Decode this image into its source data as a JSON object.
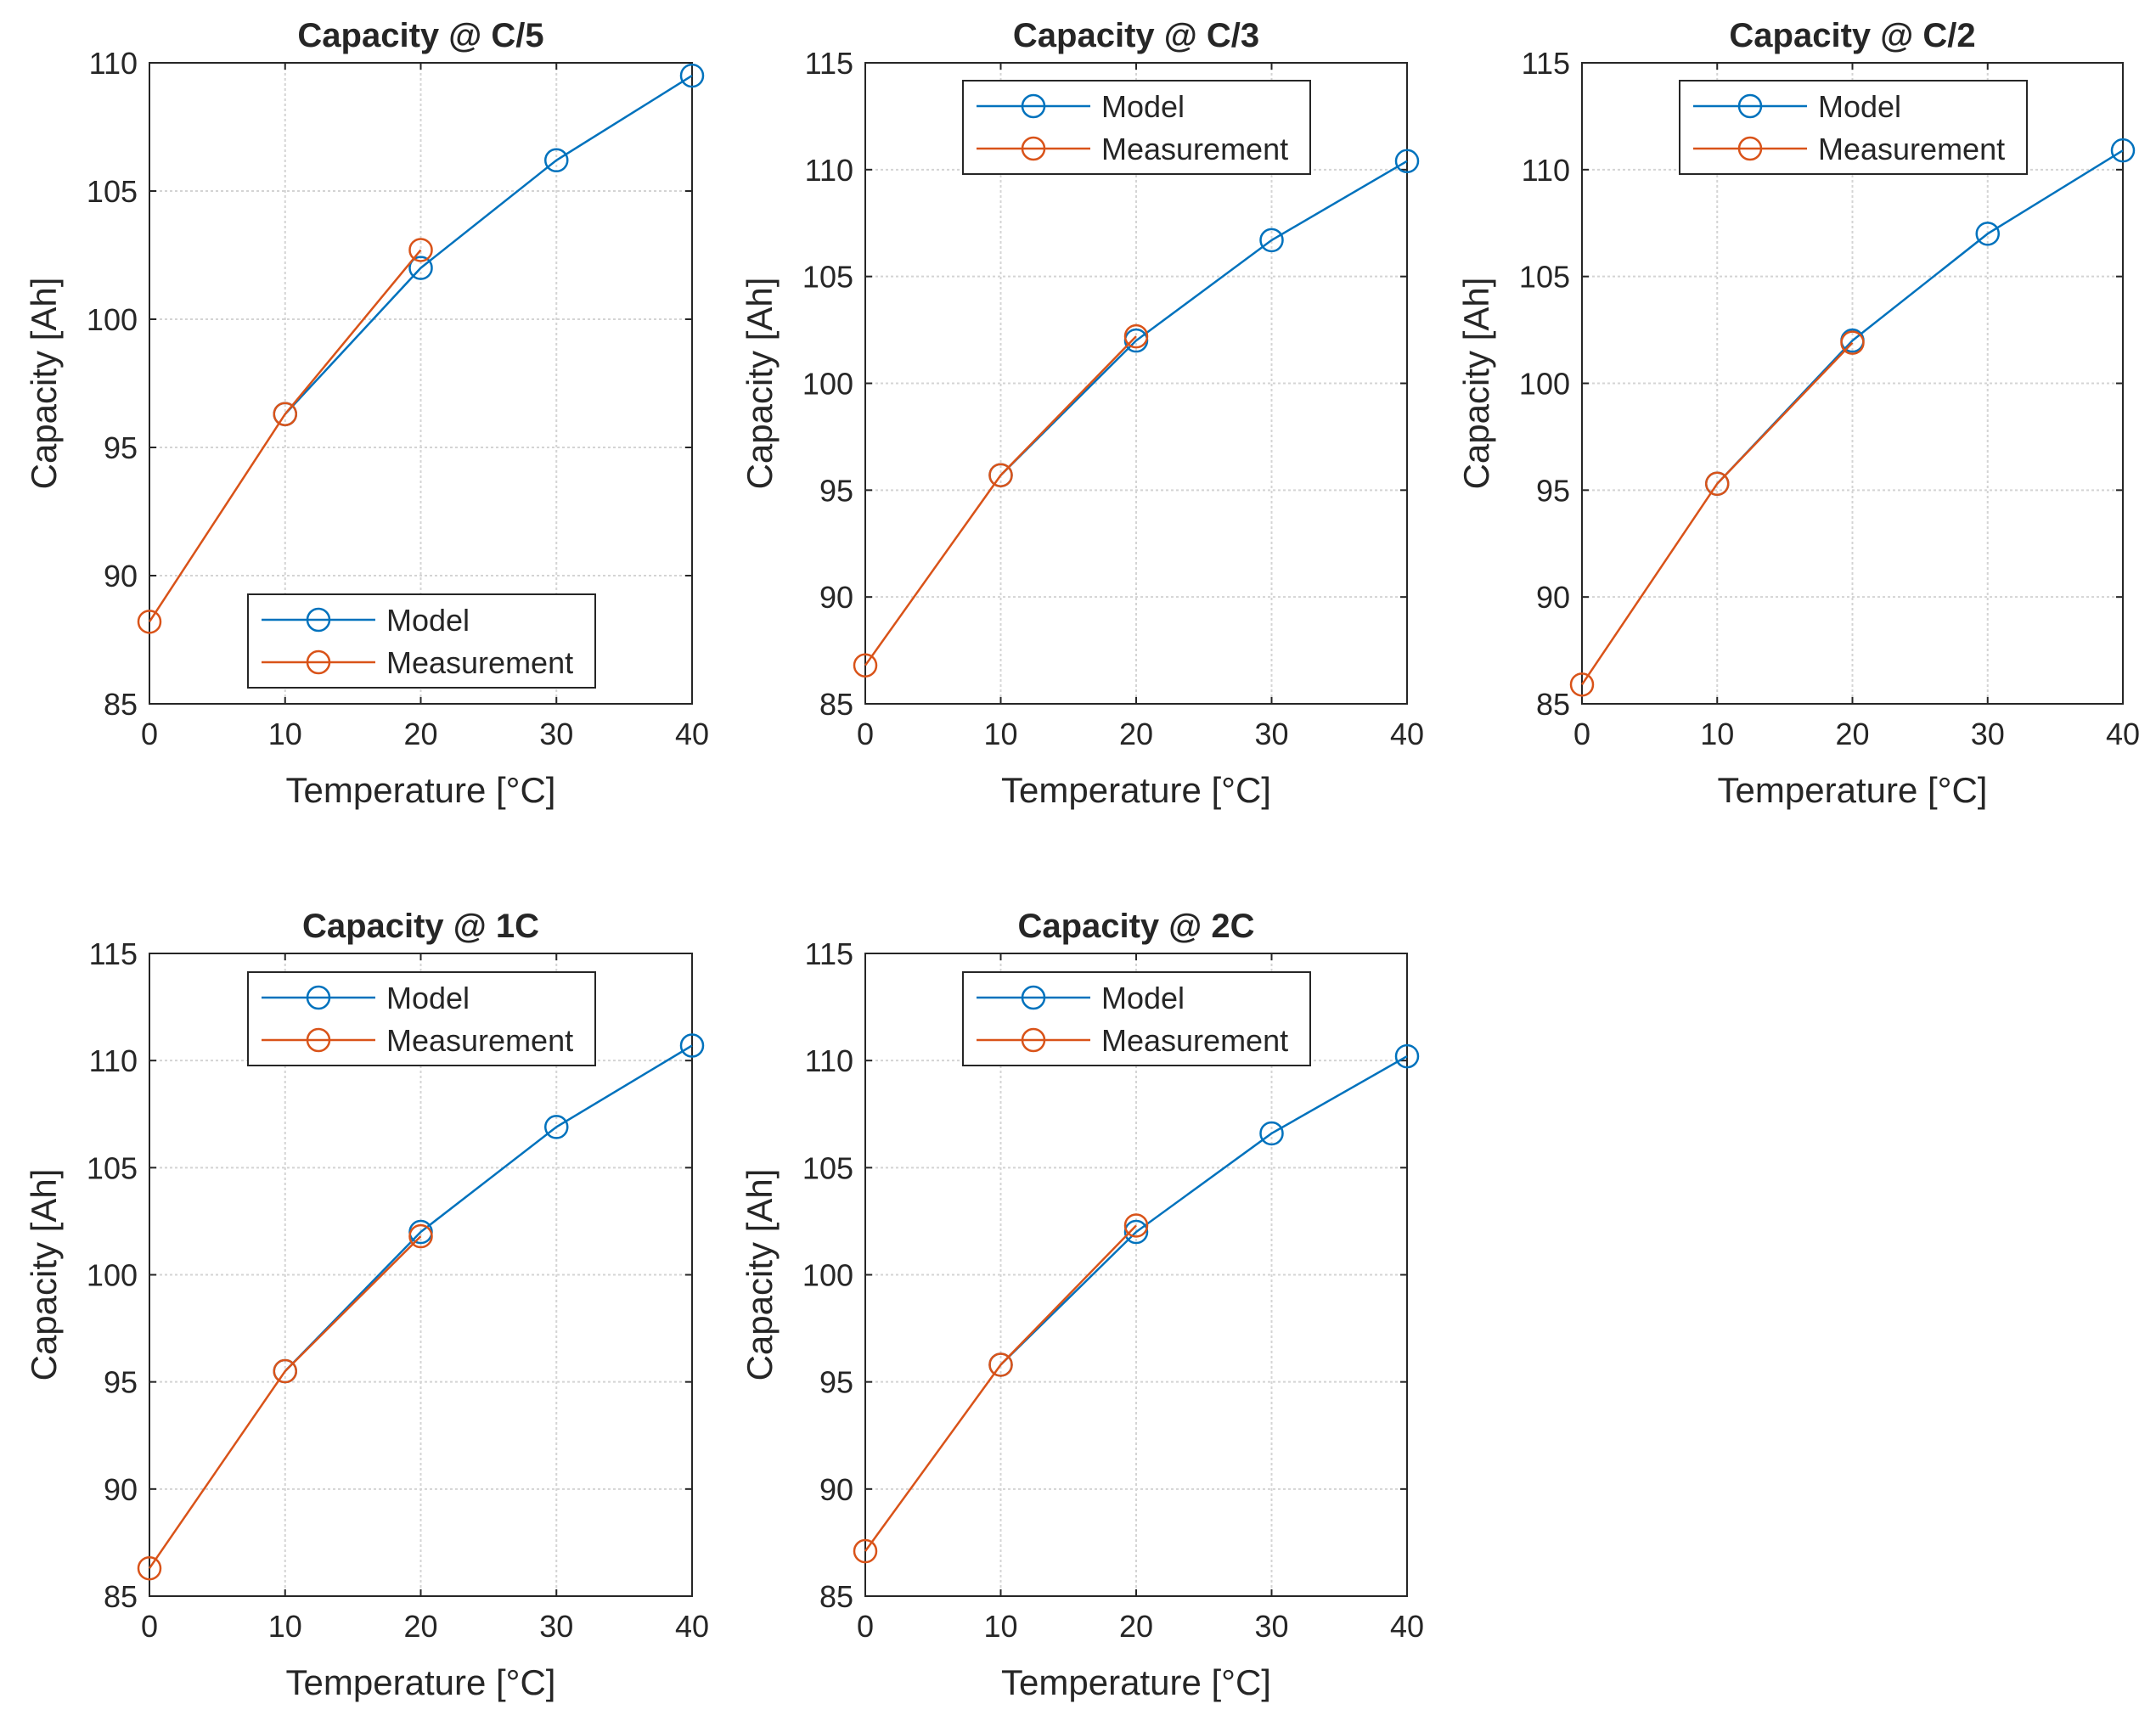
{
  "colors": {
    "model": "#0072BD",
    "measurement": "#D95319",
    "grid": "#d4d4d4",
    "axes": "#262626"
  },
  "chart_data": [
    {
      "type": "line",
      "title": "Capacity @ C/5",
      "xlabel": "Temperature [°C]",
      "ylabel": "Capacity [Ah]",
      "xlim": [
        0,
        40
      ],
      "ylim": [
        85,
        110
      ],
      "xticks": [
        0,
        10,
        20,
        30,
        40
      ],
      "yticks": [
        85,
        90,
        95,
        100,
        105,
        110
      ],
      "grid": true,
      "legend_position": "bottom",
      "series": [
        {
          "name": "Model",
          "x": [
            10,
            20,
            30,
            40
          ],
          "values": [
            96.3,
            102.0,
            106.2,
            109.5
          ]
        },
        {
          "name": "Measurement",
          "x": [
            0,
            10,
            20
          ],
          "values": [
            88.2,
            96.3,
            102.7
          ]
        }
      ]
    },
    {
      "type": "line",
      "title": "Capacity @ C/3",
      "xlabel": "Temperature [°C]",
      "ylabel": "Capacity [Ah]",
      "xlim": [
        0,
        40
      ],
      "ylim": [
        85,
        115
      ],
      "xticks": [
        0,
        10,
        20,
        30,
        40
      ],
      "yticks": [
        85,
        90,
        95,
        100,
        105,
        110,
        115
      ],
      "grid": true,
      "legend_position": "top",
      "series": [
        {
          "name": "Model",
          "x": [
            10,
            20,
            30,
            40
          ],
          "values": [
            95.7,
            102.0,
            106.7,
            110.4
          ]
        },
        {
          "name": "Measurement",
          "x": [
            0,
            10,
            20
          ],
          "values": [
            86.8,
            95.7,
            102.2
          ]
        }
      ]
    },
    {
      "type": "line",
      "title": "Capacity @ C/2",
      "xlabel": "Temperature [°C]",
      "ylabel": "Capacity [Ah]",
      "xlim": [
        0,
        40
      ],
      "ylim": [
        85,
        115
      ],
      "xticks": [
        0,
        10,
        20,
        30,
        40
      ],
      "yticks": [
        85,
        90,
        95,
        100,
        105,
        110,
        115
      ],
      "grid": true,
      "legend_position": "top",
      "series": [
        {
          "name": "Model",
          "x": [
            10,
            20,
            30,
            40
          ],
          "values": [
            95.3,
            102.0,
            107.0,
            110.9
          ]
        },
        {
          "name": "Measurement",
          "x": [
            0,
            10,
            20
          ],
          "values": [
            85.9,
            95.3,
            101.9
          ]
        }
      ]
    },
    {
      "type": "line",
      "title": "Capacity @ 1C",
      "xlabel": "Temperature [°C]",
      "ylabel": "Capacity [Ah]",
      "xlim": [
        0,
        40
      ],
      "ylim": [
        85,
        115
      ],
      "xticks": [
        0,
        10,
        20,
        30,
        40
      ],
      "yticks": [
        85,
        90,
        95,
        100,
        105,
        110,
        115
      ],
      "grid": true,
      "legend_position": "top",
      "series": [
        {
          "name": "Model",
          "x": [
            10,
            20,
            30,
            40
          ],
          "values": [
            95.5,
            102.0,
            106.9,
            110.7
          ]
        },
        {
          "name": "Measurement",
          "x": [
            0,
            10,
            20
          ],
          "values": [
            86.3,
            95.5,
            101.8
          ]
        }
      ]
    },
    {
      "type": "line",
      "title": "Capacity @ 2C",
      "xlabel": "Temperature [°C]",
      "ylabel": "Capacity [Ah]",
      "xlim": [
        0,
        40
      ],
      "ylim": [
        85,
        115
      ],
      "xticks": [
        0,
        10,
        20,
        30,
        40
      ],
      "yticks": [
        85,
        90,
        95,
        100,
        105,
        110,
        115
      ],
      "grid": true,
      "legend_position": "top",
      "series": [
        {
          "name": "Model",
          "x": [
            10,
            20,
            30,
            40
          ],
          "values": [
            95.8,
            102.0,
            106.6,
            110.2
          ]
        },
        {
          "name": "Measurement",
          "x": [
            0,
            10,
            20
          ],
          "values": [
            87.1,
            95.8,
            102.3
          ]
        }
      ]
    }
  ]
}
